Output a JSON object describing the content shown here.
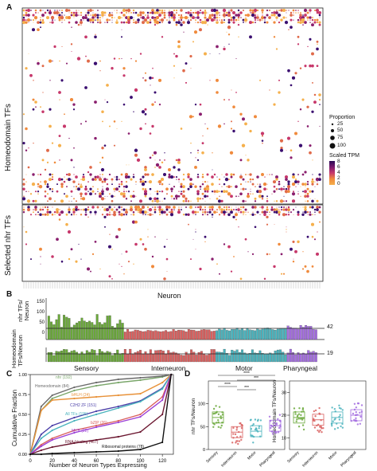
{
  "panels": {
    "a": "A",
    "b": "B",
    "c": "C",
    "d": "D"
  },
  "panel_a": {
    "ylabel_top": "Homeodomain TFs",
    "ylabel_bottom": "Selected nhr TFs",
    "xlabel": "Neuron",
    "legend": {
      "proportion_title": "Proportion",
      "proportion_levels": [
        "25",
        "50",
        "75",
        "100"
      ],
      "tpm_title": "Scaled TPM",
      "tpm_ticks": [
        "8",
        "6",
        "4",
        "2",
        "0"
      ]
    },
    "colors": {
      "low": "#f2a65a",
      "mid": "#c7386b",
      "high": "#3b0f70"
    }
  },
  "panel_b": {
    "ylabel_top": "nhr TFs/ Neuron",
    "ylabel_bottom": "Homeodomain TFs/Neuron",
    "y_ticks_top": [
      "150",
      "100",
      "50",
      "0"
    ],
    "ref_top": "42",
    "ref_bottom": "19",
    "categories": [
      "Sensory",
      "Interneuron",
      "Motor",
      "Pharyngeal"
    ],
    "colors": {
      "Sensory": "#6aa83a",
      "Interneuron": "#d9605f",
      "Motor": "#4ab3bd",
      "Pharyngeal": "#a46ee0"
    }
  },
  "chart_data": [
    {
      "type": "line",
      "title": "",
      "xlabel": "Number of Neuron Types Expressing",
      "ylabel": "Cumulative Fraction",
      "xlim": [
        0,
        130
      ],
      "ylim": [
        0,
        1
      ],
      "x_ticks": [
        "0",
        "20",
        "40",
        "60",
        "80",
        "100",
        "120"
      ],
      "y_ticks": [
        "0.00",
        "0.25",
        "0.50",
        "0.75",
        "1.00"
      ],
      "series": [
        {
          "name": "nhr (192)",
          "color": "#7aa66a",
          "x": [
            0,
            10,
            20,
            40,
            60,
            80,
            100,
            120,
            128
          ],
          "y": [
            0.0,
            0.55,
            0.7,
            0.8,
            0.86,
            0.9,
            0.93,
            0.97,
            1.0
          ]
        },
        {
          "name": "Homeodomain (84)",
          "color": "#6b6b6b",
          "x": [
            0,
            10,
            20,
            40,
            60,
            80,
            100,
            120,
            128
          ],
          "y": [
            0.0,
            0.6,
            0.74,
            0.84,
            0.9,
            0.94,
            0.96,
            0.98,
            1.0
          ]
        },
        {
          "name": "bHLH (24)",
          "color": "#e8923a",
          "x": [
            0,
            10,
            20,
            40,
            60,
            80,
            100,
            120,
            128
          ],
          "y": [
            0.0,
            0.55,
            0.68,
            0.7,
            0.72,
            0.74,
            0.76,
            0.9,
            1.0
          ]
        },
        {
          "name": "C2H2 ZF (151)",
          "color": "#4b3fa8",
          "x": [
            0,
            10,
            20,
            40,
            60,
            80,
            100,
            120,
            128
          ],
          "y": [
            0.0,
            0.25,
            0.36,
            0.46,
            0.54,
            0.6,
            0.67,
            0.83,
            1.0
          ]
        },
        {
          "name": "All TFs (195)",
          "color": "#4ab3bd",
          "x": [
            0,
            10,
            20,
            40,
            60,
            80,
            100,
            120,
            128
          ],
          "y": [
            0.0,
            0.2,
            0.3,
            0.42,
            0.5,
            0.58,
            0.66,
            0.82,
            1.0
          ]
        },
        {
          "name": "bZIP (26)",
          "color": "#d9605f",
          "x": [
            0,
            10,
            20,
            40,
            60,
            80,
            100,
            120,
            128
          ],
          "y": [
            0.0,
            0.12,
            0.2,
            0.3,
            0.36,
            0.42,
            0.5,
            0.72,
            1.0
          ]
        },
        {
          "name": "MYB (22)",
          "color": "#9b3fd6",
          "x": [
            0,
            10,
            20,
            40,
            60,
            80,
            100,
            120,
            128
          ],
          "y": [
            0.0,
            0.1,
            0.18,
            0.27,
            0.34,
            0.4,
            0.47,
            0.68,
            1.0
          ]
        },
        {
          "name": "RNA-binding (467)",
          "color": "#6b1730",
          "x": [
            0,
            10,
            20,
            40,
            60,
            80,
            100,
            120,
            128
          ],
          "y": [
            0.0,
            0.05,
            0.09,
            0.14,
            0.18,
            0.22,
            0.28,
            0.5,
            1.0
          ]
        },
        {
          "name": "Ribosomal proteins (78)",
          "color": "#111111",
          "x": [
            0,
            10,
            20,
            40,
            60,
            80,
            100,
            120,
            128
          ],
          "y": [
            0.0,
            0.0,
            0.01,
            0.02,
            0.03,
            0.04,
            0.06,
            0.15,
            1.0
          ]
        }
      ]
    },
    {
      "type": "scatter",
      "title": "",
      "ylabel": "nhr TFs/Neuron",
      "categories": [
        "Sensory",
        "Interneuron",
        "Motor",
        "Pharyngeal"
      ],
      "y_ticks": [
        "0",
        "50",
        "100"
      ],
      "ylim": [
        0,
        150
      ],
      "significance": [
        "****",
        "***",
        "***",
        "****"
      ],
      "medians": [
        70,
        38,
        40,
        52
      ]
    },
    {
      "type": "scatter",
      "title": "",
      "ylabel": "Homeodomain TFs/Neuron",
      "categories": [
        "Sensory",
        "Interneuron",
        "Motor",
        "Pharyngeal"
      ],
      "y_ticks": [
        "10",
        "20",
        "30"
      ],
      "ylim": [
        5,
        35
      ],
      "medians": [
        19,
        18,
        19,
        20
      ]
    }
  ]
}
